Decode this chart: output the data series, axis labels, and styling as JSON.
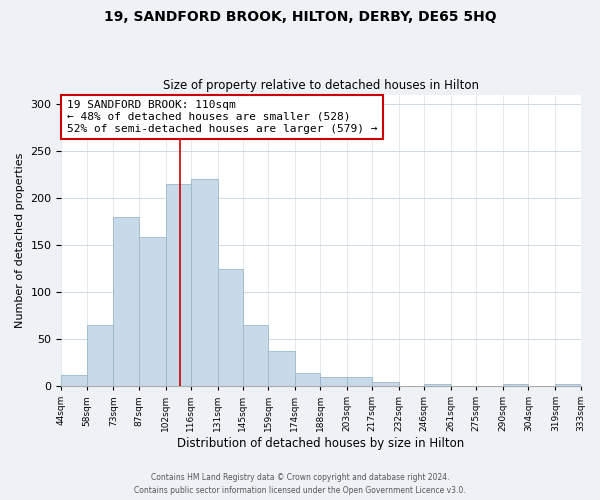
{
  "title": "19, SANDFORD BROOK, HILTON, DERBY, DE65 5HQ",
  "subtitle": "Size of property relative to detached houses in Hilton",
  "xlabel": "Distribution of detached houses by size in Hilton",
  "ylabel": "Number of detached properties",
  "bar_edges": [
    44,
    58,
    73,
    87,
    102,
    116,
    131,
    145,
    159,
    174,
    188,
    203,
    217,
    232,
    246,
    261,
    275,
    290,
    304,
    319,
    333
  ],
  "bar_heights": [
    12,
    65,
    180,
    158,
    215,
    220,
    125,
    65,
    37,
    14,
    10,
    10,
    4,
    0,
    2,
    0,
    0,
    2,
    0,
    2
  ],
  "bar_color": "#c8d9e8",
  "bar_edgecolor": "#9ab8cc",
  "vline_x": 110,
  "vline_color": "#cc0000",
  "annotation_line1": "19 SANDFORD BROOK: 110sqm",
  "annotation_line2": "← 48% of detached houses are smaller (528)",
  "annotation_line3": "52% of semi-detached houses are larger (579) →",
  "annotation_box_facecolor": "white",
  "annotation_box_edgecolor": "#cc0000",
  "ylim": [
    0,
    310
  ],
  "yticks": [
    0,
    50,
    100,
    150,
    200,
    250,
    300
  ],
  "tick_labels": [
    "44sqm",
    "58sqm",
    "73sqm",
    "87sqm",
    "102sqm",
    "116sqm",
    "131sqm",
    "145sqm",
    "159sqm",
    "174sqm",
    "188sqm",
    "203sqm",
    "217sqm",
    "232sqm",
    "246sqm",
    "261sqm",
    "275sqm",
    "290sqm",
    "304sqm",
    "319sqm",
    "333sqm"
  ],
  "footer1": "Contains HM Land Registry data © Crown copyright and database right 2024.",
  "footer2": "Contains public sector information licensed under the Open Government Licence v3.0.",
  "bg_color": "#eef2f7",
  "plot_bg_color": "#ffffff",
  "grid_color": "#d0dae4"
}
